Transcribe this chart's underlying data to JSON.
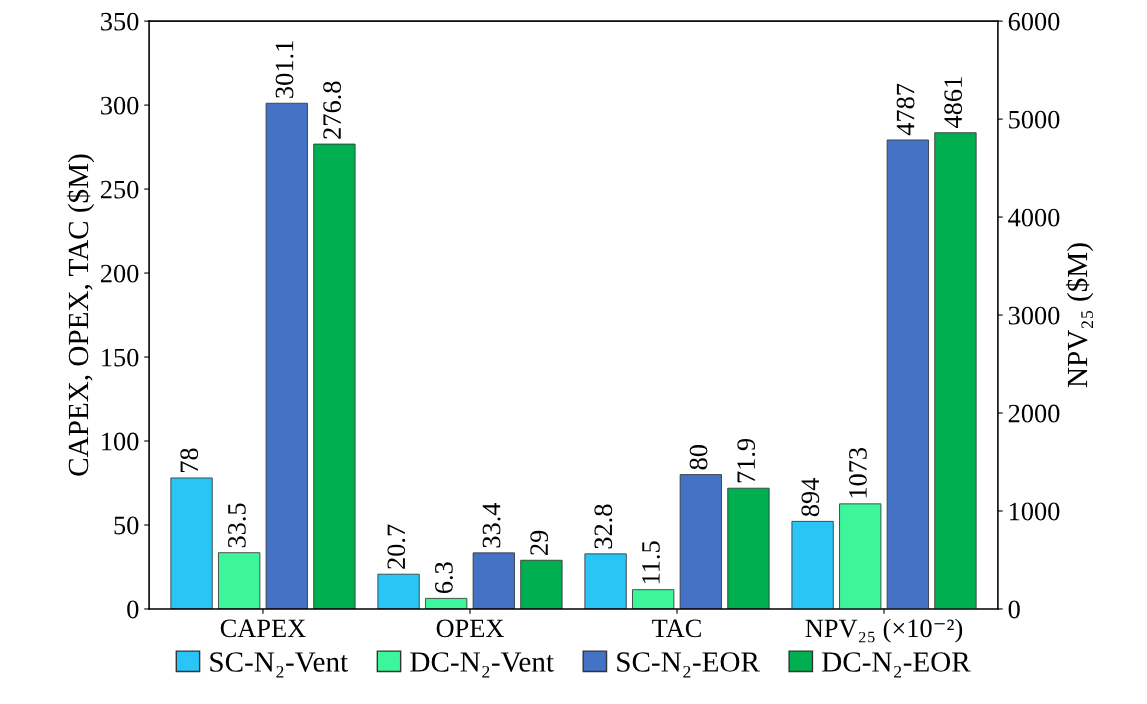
{
  "chart_data": {
    "type": "bar",
    "categories": [
      "CAPEX",
      "OPEX",
      "TAC",
      "NPV₂₅ (×10⁻²)"
    ],
    "ylabel": "CAPEX, OPEX, TAC ($M)",
    "y2label": "NPV₂₅ ($M)",
    "ylim": [
      0,
      350
    ],
    "yticks": [
      0,
      50,
      100,
      150,
      200,
      250,
      300,
      350
    ],
    "y2lim": [
      0,
      6000
    ],
    "y2ticks": [
      0,
      1000,
      2000,
      3000,
      4000,
      5000,
      6000
    ],
    "series": [
      {
        "name": "SC-N₂-Vent",
        "color": "#29c5f6",
        "values": [
          78,
          20.7,
          32.8,
          null
        ]
      },
      {
        "name": "DC-N₂-Vent",
        "color": "#3df59a",
        "values": [
          33.5,
          6.3,
          11.5,
          null
        ]
      },
      {
        "name": "SC-N₂-EOR",
        "color": "#4472c4",
        "values": [
          301.1,
          33.4,
          80,
          null
        ]
      },
      {
        "name": "DC-N₂-EOR",
        "color": "#00b050",
        "values": [
          276.8,
          29,
          71.9,
          null
        ]
      },
      {
        "color": "#29c5f6",
        "axis": "y2",
        "values": [
          null,
          null,
          null,
          894
        ]
      },
      {
        "color": "#3df59a",
        "axis": "y2",
        "values": [
          null,
          null,
          null,
          1073
        ]
      },
      {
        "color": "#4472c4",
        "axis": "y2",
        "values": [
          null,
          null,
          null,
          4787
        ]
      },
      {
        "color": "#00b050",
        "axis": "y2",
        "values": [
          null,
          null,
          null,
          4861
        ]
      }
    ],
    "data_labels": true,
    "grid": false,
    "legend": "bottom"
  }
}
